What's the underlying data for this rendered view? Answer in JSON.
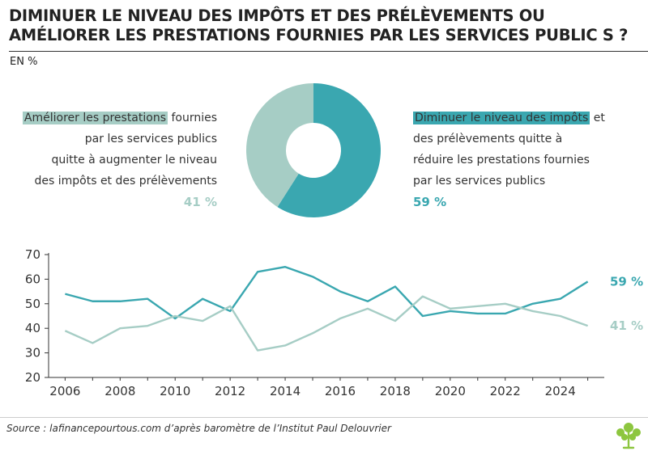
{
  "header": {
    "title_line1": "DIMINUER LE NIVEAU DES IMPÔTS ET DES PRÉLÈVEMENTS OU",
    "title_line2": "AMÉLIORER LES PRESTATIONS FOURNIES PAR LES SERVICES PUBLIC S ?",
    "unit": "EN %"
  },
  "options": {
    "left": {
      "highlight": "Améliorer les prestations",
      "rest_line1": " fournies",
      "line2": "par les services publics",
      "line3": "quitte à augmenter le niveau",
      "line4": "des impôts et des prélèvements",
      "pct": "41 %"
    },
    "right": {
      "highlight": "Diminuer le niveau des impôts",
      "rest_line1": " et",
      "line2": "des prélèvements quitte à",
      "line3": "réduire les prestations fournies",
      "line4": "par les services publics",
      "pct": "59 %"
    }
  },
  "colors": {
    "light": "#a6cdc5",
    "dark": "#3aa7b0",
    "axis": "#333333"
  },
  "chart_data": [
    {
      "type": "pie",
      "labels": [
        "Améliorer les prestations",
        "Diminuer le niveau des impôts"
      ],
      "values": [
        41,
        59
      ],
      "colors": [
        "#a6cdc5",
        "#3aa7b0"
      ]
    },
    {
      "type": "line",
      "x": [
        2006,
        2007,
        2008,
        2009,
        2010,
        2011,
        2012,
        2013,
        2014,
        2015,
        2016,
        2017,
        2018,
        2019,
        2020,
        2021,
        2022,
        2023,
        2024,
        2025
      ],
      "series": [
        {
          "values": [
            54,
            51,
            51,
            52,
            44,
            52,
            47,
            63,
            65,
            61,
            55,
            51,
            57,
            45,
            47,
            46,
            46,
            50,
            52,
            59
          ],
          "color": "#3aa7b0",
          "end_label": "59 %"
        },
        {
          "values": [
            39,
            34,
            40,
            41,
            45,
            43,
            49,
            31,
            33,
            38,
            44,
            48,
            43,
            53,
            48,
            49,
            50,
            47,
            45,
            41
          ],
          "color": "#a6cdc5",
          "end_label": "41 %"
        }
      ],
      "xticks": [
        2006,
        2008,
        2010,
        2012,
        2014,
        2016,
        2018,
        2020,
        2022,
        2024
      ],
      "yticks": [
        20,
        30,
        40,
        50,
        60,
        70
      ],
      "ylim": [
        20,
        70
      ],
      "xlim": [
        2005.4,
        2025.6
      ]
    }
  ],
  "footer": {
    "source": "Source : lafinancepourtous.com d’après baromètre de l’Institut Paul Delouvrier"
  }
}
